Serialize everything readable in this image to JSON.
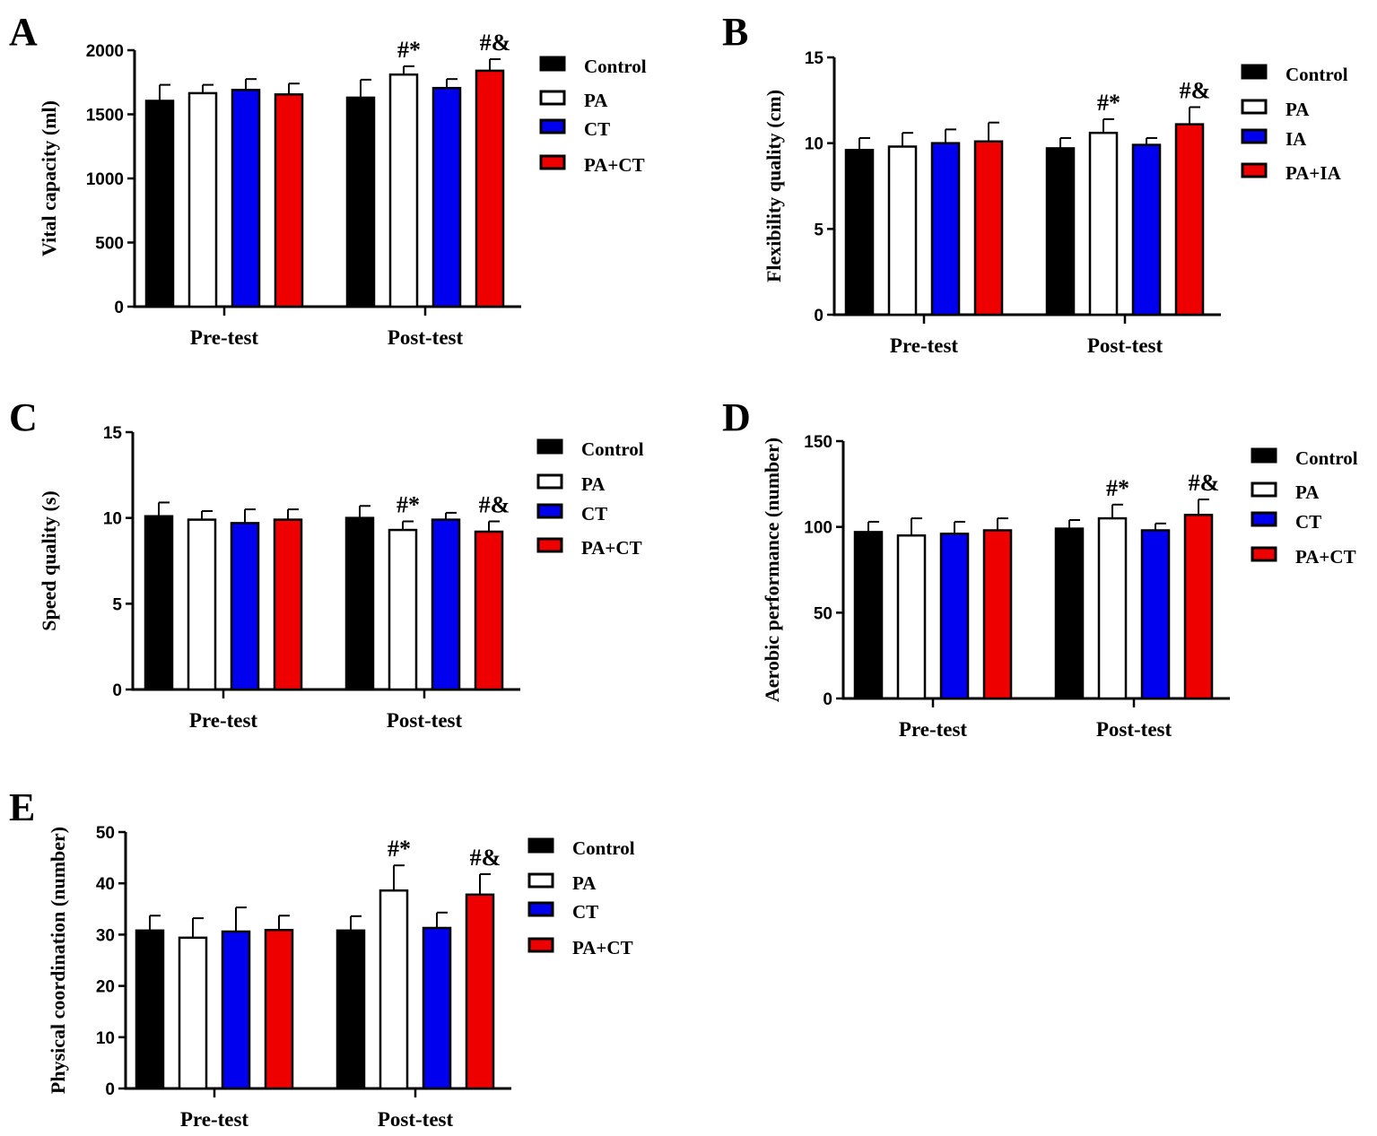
{
  "colors": {
    "Control": "#000000",
    "PA": "#ffffff",
    "CT": "#0000ee",
    "PA+CT": "#ee0000"
  },
  "chart_data": [
    {
      "type": "bar",
      "panel": "A",
      "ylabel": "Vital capacity (ml)",
      "ylim": [
        0,
        2000
      ],
      "yticks": [
        "0",
        "500",
        "1000",
        "1500",
        "2000"
      ],
      "categories": [
        "Pre-test",
        "Post-test"
      ],
      "legend": [
        "Control",
        "PA",
        "CT",
        "PA+CT"
      ],
      "series": [
        {
          "name": "Control",
          "values": [
            1605,
            1630
          ],
          "errors": [
            125,
            140
          ]
        },
        {
          "name": "PA",
          "values": [
            1665,
            1810
          ],
          "errors": [
            65,
            65
          ]
        },
        {
          "name": "CT",
          "values": [
            1690,
            1705
          ],
          "errors": [
            85,
            70
          ]
        },
        {
          "name": "PA+CT",
          "values": [
            1655,
            1840
          ],
          "errors": [
            85,
            90
          ]
        }
      ],
      "annotations": [
        {
          "series": "PA",
          "category": "Post-test",
          "text": "#*"
        },
        {
          "series": "PA+CT",
          "category": "Post-test",
          "text": "#&"
        }
      ]
    },
    {
      "type": "bar",
      "panel": "B",
      "ylabel": "Flexibility quality (cm)",
      "ylim": [
        0,
        15
      ],
      "yticks": [
        "0",
        "5",
        "10",
        "15"
      ],
      "categories": [
        "Pre-test",
        "Post-test"
      ],
      "legend": [
        "Control",
        "PA",
        "IA",
        "PA+IA"
      ],
      "series": [
        {
          "name": "Control",
          "values": [
            9.6,
            9.7
          ],
          "errors": [
            0.7,
            0.6
          ]
        },
        {
          "name": "PA",
          "values": [
            9.8,
            10.6
          ],
          "errors": [
            0.8,
            0.8
          ]
        },
        {
          "name": "IA",
          "values": [
            10.0,
            9.9
          ],
          "errors": [
            0.8,
            0.4
          ]
        },
        {
          "name": "PA+IA",
          "values": [
            10.1,
            11.1
          ],
          "errors": [
            1.1,
            1.0
          ]
        }
      ],
      "annotations": [
        {
          "series": "PA",
          "category": "Post-test",
          "text": "#*"
        },
        {
          "series": "PA+IA",
          "category": "Post-test",
          "text": "#&"
        }
      ]
    },
    {
      "type": "bar",
      "panel": "C",
      "ylabel": "Speed quality (s)",
      "ylim": [
        0,
        15
      ],
      "yticks": [
        "0",
        "5",
        "10",
        "15"
      ],
      "categories": [
        "Pre-test",
        "Post-test"
      ],
      "legend": [
        "Control",
        "PA",
        "CT",
        "PA+CT"
      ],
      "series": [
        {
          "name": "Control",
          "values": [
            10.1,
            10.0
          ],
          "errors": [
            0.8,
            0.7
          ]
        },
        {
          "name": "PA",
          "values": [
            9.9,
            9.3
          ],
          "errors": [
            0.5,
            0.5
          ]
        },
        {
          "name": "CT",
          "values": [
            9.7,
            9.9
          ],
          "errors": [
            0.8,
            0.4
          ]
        },
        {
          "name": "PA+CT",
          "values": [
            9.9,
            9.2
          ],
          "errors": [
            0.6,
            0.6
          ]
        }
      ],
      "annotations": [
        {
          "series": "PA",
          "category": "Post-test",
          "text": "#*"
        },
        {
          "series": "PA+CT",
          "category": "Post-test",
          "text": "#&"
        }
      ]
    },
    {
      "type": "bar",
      "panel": "D",
      "ylabel": "Aerobic performance (number)",
      "ylim": [
        0,
        150
      ],
      "yticks": [
        "0",
        "50",
        "100",
        "150"
      ],
      "categories": [
        "Pre-test",
        "Post-test"
      ],
      "legend": [
        "Control",
        "PA",
        "CT",
        "PA+CT"
      ],
      "series": [
        {
          "name": "Control",
          "values": [
            97,
            99
          ],
          "errors": [
            6,
            5
          ]
        },
        {
          "name": "PA",
          "values": [
            95,
            105
          ],
          "errors": [
            10,
            8
          ]
        },
        {
          "name": "CT",
          "values": [
            96,
            98
          ],
          "errors": [
            7,
            4
          ]
        },
        {
          "name": "PA+CT",
          "values": [
            98,
            107
          ],
          "errors": [
            7,
            9
          ]
        }
      ],
      "annotations": [
        {
          "series": "PA",
          "category": "Post-test",
          "text": "#*"
        },
        {
          "series": "PA+CT",
          "category": "Post-test",
          "text": "#&"
        }
      ]
    },
    {
      "type": "bar",
      "panel": "E",
      "ylabel": "Physical coordination (number)",
      "ylim": [
        0,
        50
      ],
      "yticks": [
        "0",
        "10",
        "20",
        "30",
        "40",
        "50"
      ],
      "categories": [
        "Pre-test",
        "Post-test"
      ],
      "legend": [
        "Control",
        "PA",
        "CT",
        "PA+CT"
      ],
      "series": [
        {
          "name": "Control",
          "values": [
            30.8,
            30.8
          ],
          "errors": [
            2.9,
            2.8
          ]
        },
        {
          "name": "PA",
          "values": [
            29.4,
            38.6
          ],
          "errors": [
            3.8,
            4.9
          ]
        },
        {
          "name": "CT",
          "values": [
            30.6,
            31.3
          ],
          "errors": [
            4.7,
            3.0
          ]
        },
        {
          "name": "PA+CT",
          "values": [
            30.9,
            37.8
          ],
          "errors": [
            2.8,
            4.0
          ]
        }
      ],
      "annotations": [
        {
          "series": "PA",
          "category": "Post-test",
          "text": "#*"
        },
        {
          "series": "PA+CT",
          "category": "Post-test",
          "text": "#&"
        }
      ]
    }
  ]
}
